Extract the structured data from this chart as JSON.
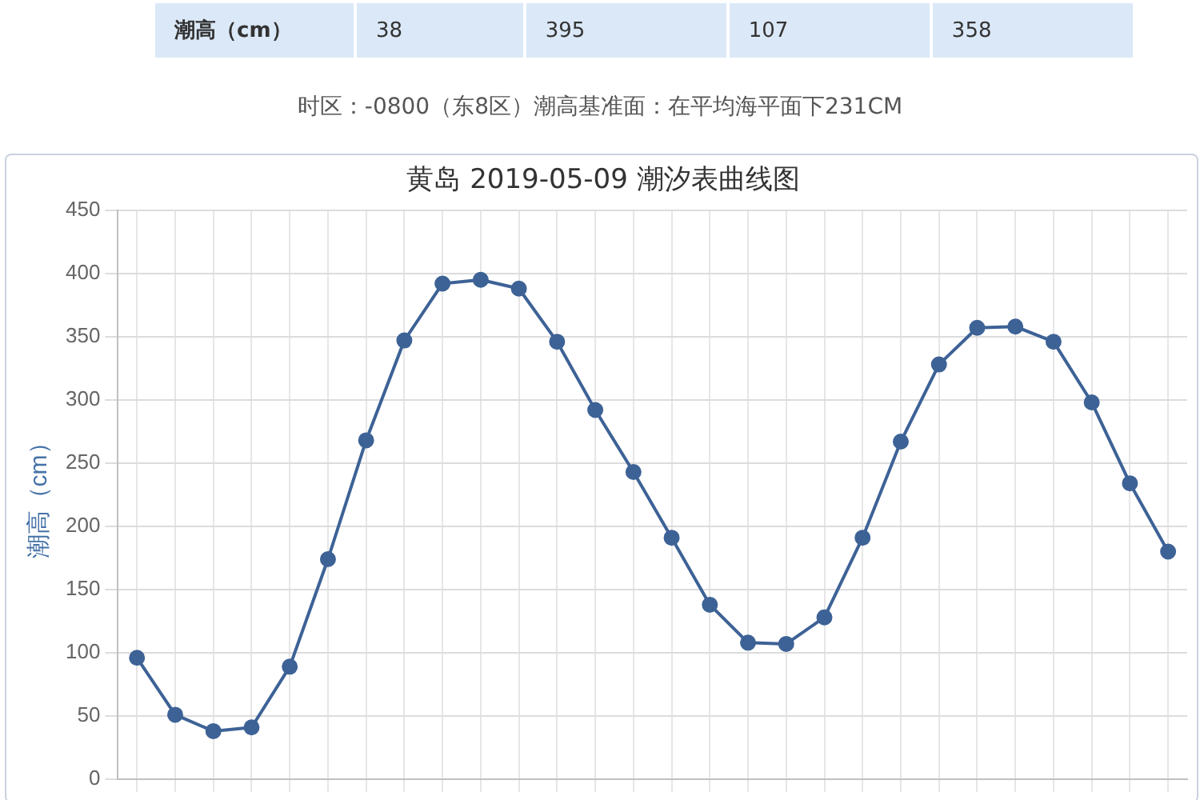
{
  "chart_data": {
    "type": "line",
    "title": "黄岛 2019-05-09 潮汐表曲线图",
    "ylabel": "潮高（cm）",
    "categories": [
      null,
      null,
      null,
      null,
      null,
      null,
      null,
      null,
      null,
      null,
      null,
      null,
      null,
      null,
      null,
      null,
      null,
      null,
      null,
      null,
      null,
      null,
      null,
      null,
      null,
      null,
      null,
      null
    ],
    "values": [
      96,
      51,
      38,
      41,
      89,
      174,
      268,
      347,
      392,
      395,
      388,
      346,
      292,
      243,
      191,
      138,
      108,
      107,
      128,
      191,
      267,
      328,
      357,
      358,
      346,
      298,
      234,
      180
    ],
    "color": "#3d6296",
    "ylim": [
      0,
      450
    ],
    "yticks": [
      0,
      50,
      100,
      150,
      200,
      250,
      300,
      350,
      400,
      450
    ],
    "tick_labels": "y",
    "grid": true,
    "marker": "circle",
    "line_style": "solid",
    "annotations": [
      "潮高（cm）",
      "38",
      "395",
      "107",
      "358",
      "时区：-0800（东8区）潮高基准面：在平均海平面下231CM"
    ]
  }
}
